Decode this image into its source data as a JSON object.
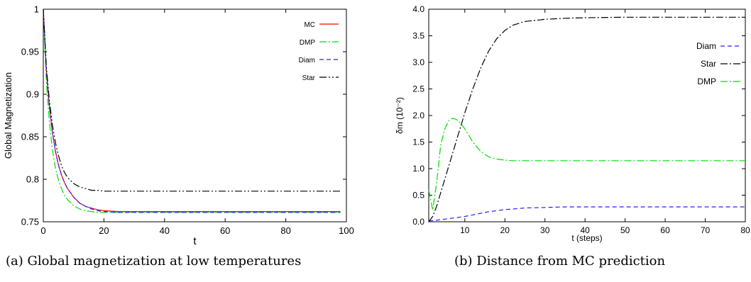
{
  "captions": {
    "a": "(a) Global magnetization at low temperatures",
    "b": "(b) Distance from MC prediction"
  },
  "chart_data": [
    {
      "type": "line",
      "xlabel": "t",
      "ylabel": "Global Magnetization",
      "xlim": [
        0,
        100
      ],
      "ylim": [
        0.75,
        1.0
      ],
      "xticks": [
        0,
        20,
        40,
        60,
        80,
        100
      ],
      "xtick_labels": [
        "0",
        "20",
        "40",
        "60",
        "80",
        "100"
      ],
      "yticks": [
        0.75,
        0.8,
        0.85,
        0.9,
        0.95,
        1.0
      ],
      "ytick_labels": [
        "0.75",
        "0.8",
        "0.85",
        "0.9",
        "0.95",
        "1"
      ],
      "grid": false,
      "legend_position": "top-right",
      "x": [
        0,
        1,
        2,
        3,
        4,
        5,
        6,
        7,
        8,
        10,
        12,
        14,
        16,
        18,
        20,
        25,
        30,
        40,
        50,
        60,
        70,
        80,
        90,
        98
      ],
      "series": [
        {
          "name": "MC",
          "color": "#ff0000",
          "dash": "solid",
          "values": [
            1.0,
            0.928,
            0.886,
            0.855,
            0.833,
            0.817,
            0.805,
            0.796,
            0.789,
            0.779,
            0.772,
            0.768,
            0.766,
            0.764,
            0.763,
            0.762,
            0.762,
            0.762,
            0.762,
            0.762,
            0.762,
            0.762,
            0.762,
            0.762
          ]
        },
        {
          "name": "DMP",
          "color": "#00dd00",
          "dash": "dashdot",
          "values": [
            1.0,
            0.915,
            0.868,
            0.835,
            0.813,
            0.799,
            0.789,
            0.781,
            0.776,
            0.769,
            0.765,
            0.763,
            0.762,
            0.761,
            0.761,
            0.761,
            0.761,
            0.761,
            0.761,
            0.761,
            0.761,
            0.761,
            0.761,
            0.761
          ]
        },
        {
          "name": "Diam",
          "color": "#2222ff",
          "dash": "dash",
          "values": [
            1.0,
            0.928,
            0.886,
            0.855,
            0.833,
            0.817,
            0.805,
            0.796,
            0.789,
            0.779,
            0.772,
            0.768,
            0.765,
            0.763,
            0.762,
            0.761,
            0.761,
            0.761,
            0.761,
            0.761,
            0.761,
            0.761,
            0.761,
            0.761
          ]
        },
        {
          "name": "Star",
          "color": "#000000",
          "dash": "dashdotdot",
          "values": [
            1.0,
            0.932,
            0.893,
            0.864,
            0.843,
            0.828,
            0.816,
            0.808,
            0.802,
            0.795,
            0.791,
            0.789,
            0.787,
            0.787,
            0.786,
            0.786,
            0.786,
            0.786,
            0.786,
            0.786,
            0.786,
            0.786,
            0.786,
            0.786
          ]
        }
      ]
    },
    {
      "type": "line",
      "xlabel": "t (steps)",
      "ylabel": "δm (10⁻²)",
      "xlim": [
        1,
        80
      ],
      "ylim": [
        0,
        4.0
      ],
      "xticks": [
        10,
        20,
        30,
        40,
        50,
        60,
        70,
        80
      ],
      "xtick_labels": [
        "10",
        "20",
        "30",
        "40",
        "50",
        "60",
        "70",
        "80"
      ],
      "yticks": [
        0,
        0.5,
        1.0,
        1.5,
        2.0,
        2.5,
        3.0,
        3.5,
        4.0
      ],
      "ytick_labels": [
        "0.0",
        "0.5",
        "1.0",
        "1.5",
        "2.0",
        "2.5",
        "3.0",
        "3.5",
        "4.0"
      ],
      "grid": false,
      "legend_position": "top-right",
      "x": [
        1,
        2,
        3,
        4,
        5,
        6,
        7,
        8,
        9,
        10,
        12,
        14,
        16,
        18,
        20,
        22,
        25,
        30,
        35,
        40,
        50,
        60,
        70,
        80
      ],
      "series": [
        {
          "name": "Diam",
          "color": "#2222ff",
          "dash": "dash",
          "values": [
            0.02,
            0.02,
            0.03,
            0.04,
            0.05,
            0.06,
            0.07,
            0.08,
            0.09,
            0.1,
            0.13,
            0.16,
            0.19,
            0.21,
            0.23,
            0.24,
            0.26,
            0.27,
            0.28,
            0.28,
            0.28,
            0.28,
            0.28,
            0.28
          ]
        },
        {
          "name": "Star",
          "color": "#000000",
          "dash": "dashdot",
          "values": [
            0.0,
            0.1,
            0.3,
            0.55,
            0.8,
            1.05,
            1.3,
            1.55,
            1.8,
            2.05,
            2.5,
            2.9,
            3.22,
            3.45,
            3.6,
            3.7,
            3.77,
            3.81,
            3.83,
            3.84,
            3.85,
            3.85,
            3.85,
            3.85
          ]
        },
        {
          "name": "DMP",
          "color": "#00dd00",
          "dash": "dashdot",
          "values": [
            0.6,
            0.22,
            0.75,
            1.45,
            1.75,
            1.9,
            1.95,
            1.92,
            1.85,
            1.75,
            1.5,
            1.32,
            1.22,
            1.18,
            1.16,
            1.15,
            1.15,
            1.15,
            1.15,
            1.15,
            1.15,
            1.15,
            1.15,
            1.15
          ]
        }
      ]
    }
  ]
}
